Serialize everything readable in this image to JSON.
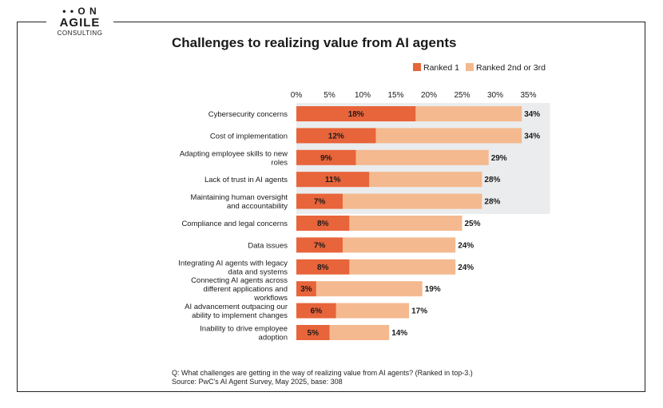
{
  "logo": {
    "top": "• • O N",
    "agile": "AGILE",
    "consulting": "CONSULTING"
  },
  "colors": {
    "ranked1": "#e8643a",
    "ranked23": "#f5b98f",
    "highlight": "#eaeced"
  },
  "chart_data": {
    "type": "bar",
    "orientation": "horizontal",
    "stacked": true,
    "title": "Challenges to realizing value from AI agents",
    "xlim": [
      0,
      35
    ],
    "ticks": [
      0,
      5,
      10,
      15,
      20,
      25,
      30,
      35
    ],
    "tick_labels": [
      "0%",
      "5%",
      "10%",
      "15%",
      "20%",
      "25%",
      "30%",
      "35%"
    ],
    "legend_position": "top-right",
    "categories": [
      [
        "Cybersecurity concerns"
      ],
      [
        "Cost of implementation"
      ],
      [
        "Adapting employee skills to new",
        "roles"
      ],
      [
        "Lack of trust in AI agents"
      ],
      [
        "Maintaining human oversight",
        "and accountability"
      ],
      [
        "Compliance and legal concerns"
      ],
      [
        "Data issues"
      ],
      [
        "Integrating AI agents with legacy",
        "data and systems"
      ],
      [
        "Connecting AI agents across",
        "different applications and",
        "workflows"
      ],
      [
        "AI advancement outpacing our",
        "ability to implement changes"
      ],
      [
        "Inability to drive employee",
        "adoption"
      ]
    ],
    "series": [
      {
        "name": "Ranked 1",
        "values": [
          18,
          12,
          9,
          11,
          7,
          8,
          7,
          8,
          3,
          6,
          5
        ],
        "labels": [
          "18%",
          "12%",
          "9%",
          "11%",
          "7%",
          "8%",
          "7%",
          "8%",
          "3%",
          "6%",
          "5%"
        ]
      },
      {
        "name": "Ranked 2nd or 3rd",
        "values": [
          16,
          22,
          20,
          17,
          21,
          17,
          17,
          16,
          16,
          11,
          9
        ]
      }
    ],
    "totals": [
      34,
      34,
      29,
      28,
      28,
      25,
      24,
      24,
      19,
      17,
      14
    ],
    "total_labels": [
      "34%",
      "34%",
      "29%",
      "28%",
      "28%",
      "25%",
      "24%",
      "24%",
      "19%",
      "17%",
      "14%"
    ],
    "highlighted_rows": 5
  },
  "footnote": {
    "question": "Q: What challenges are getting in the way of realizing value from AI agents? (Ranked in top-3.)",
    "source": "Source: PwC's AI Agent Survey, May 2025, base: 308"
  }
}
